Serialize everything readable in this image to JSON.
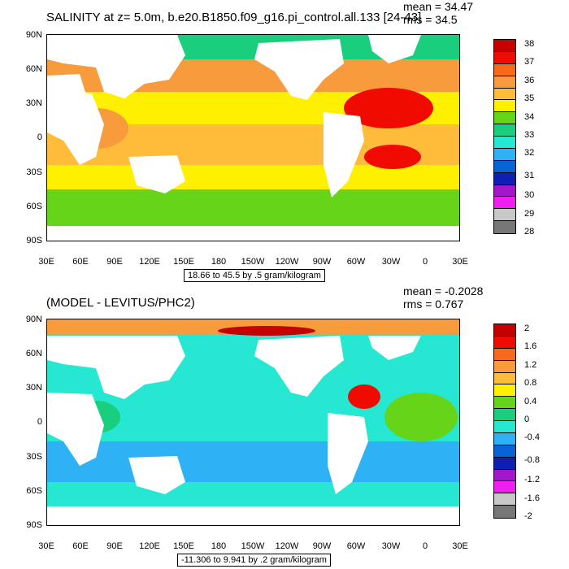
{
  "panel1": {
    "title": "SALINITY at z=   5.0m, b.e20.B1850.f09_g16.pi_control.all.133 [24-43]",
    "mean": "mean = 34.47",
    "rms": "rms = 34.5",
    "info": "18.66 to 45.5 by .5 gram/kilogram",
    "colorbar_labels": [
      "38",
      "37",
      "36",
      "35",
      "34",
      "33",
      "32",
      "31",
      "30",
      "29",
      "28"
    ],
    "colorbar_colors": [
      "#c40000",
      "#f00a00",
      "#f8691c",
      "#f79b3c",
      "#ffbb3a",
      "#fff000",
      "#66d51a",
      "#19ce7d",
      "#26e8d2",
      "#2fb1f5",
      "#0a63d6",
      "#0f1eb4",
      "#a316c9",
      "#f01ef0",
      "#c8c8c8",
      "#777777"
    ]
  },
  "panel2": {
    "title": "(MODEL - LEVITUS/PHC2)",
    "mean": "mean = -0.2028",
    "rms": "rms = 0.767",
    "info": "-11.306 to 9.941 by .2 gram/kilogram",
    "colorbar_labels": [
      "2",
      "1.6",
      "1.2",
      "0.8",
      "0.4",
      "0",
      "-0.4",
      "-0.8",
      "-1.2",
      "-1.6",
      "-2"
    ],
    "colorbar_colors": [
      "#c40000",
      "#f00a00",
      "#f8691c",
      "#f79b3c",
      "#ffbb3a",
      "#fff000",
      "#66d51a",
      "#19ce7d",
      "#26e8d2",
      "#2fb1f5",
      "#0a63d6",
      "#0f1eb4",
      "#a316c9",
      "#f01ef0",
      "#c8c8c8",
      "#777777"
    ]
  },
  "axes": {
    "lat_labels": [
      "90N",
      "60N",
      "30N",
      "0",
      "30S",
      "60S",
      "90S"
    ],
    "lon_labels": [
      "30E",
      "60E",
      "90E",
      "120E",
      "150E",
      "180",
      "150W",
      "120W",
      "90W",
      "60W",
      "30W",
      "0",
      "30E"
    ]
  },
  "colors": {
    "land": "#ffffff",
    "ocean_base_top": "#ffbb3a",
    "ocean_base_bottom": "#26e8d2"
  }
}
